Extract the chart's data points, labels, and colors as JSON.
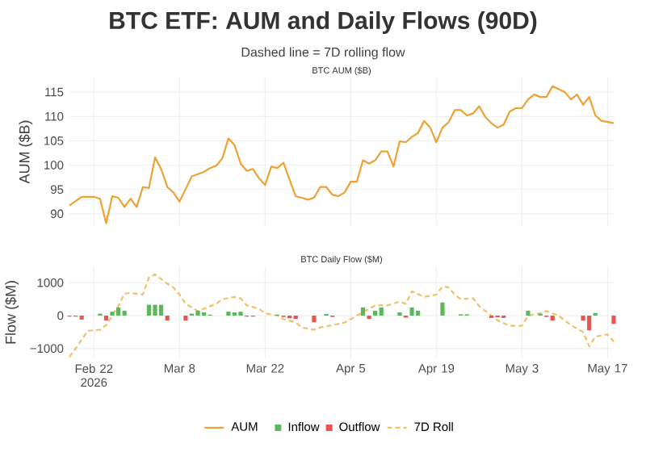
{
  "chart_data": [
    {
      "type": "line",
      "title": "BTC ETF: AUM and Daily Flows (90D)",
      "subtitle": "Dashed line = 7D rolling flow",
      "annotations": [
        "BTC AUM ($B)"
      ],
      "ylabel": "AUM ($B)",
      "xlim": [
        "2026-02-18",
        "2026-05-18"
      ],
      "ylim": [
        87.5,
        118
      ],
      "xticks": [
        "2026-02-22",
        "2026-03-08",
        "2026-03-22",
        "2026-04-05",
        "2026-04-19",
        "2026-05-03",
        "2026-05-17"
      ],
      "yticks": [
        90,
        95,
        100,
        105,
        110,
        115
      ],
      "tick_labels": "y",
      "grid": true,
      "legend": "bottom",
      "series": [
        {
          "name": "AUM",
          "color": "#eea236",
          "x": [
            "2026-02-18",
            "2026-02-20",
            "2026-02-22",
            "2026-02-23",
            "2026-02-24",
            "2026-02-25",
            "2026-02-26",
            "2026-02-27",
            "2026-02-28",
            "2026-03-01",
            "2026-03-02",
            "2026-03-03",
            "2026-03-04",
            "2026-03-05",
            "2026-03-06",
            "2026-03-07",
            "2026-03-08",
            "2026-03-09",
            "2026-03-10",
            "2026-03-12",
            "2026-03-13",
            "2026-03-14",
            "2026-03-15",
            "2026-03-16",
            "2026-03-17",
            "2026-03-18",
            "2026-03-19",
            "2026-03-20",
            "2026-03-21",
            "2026-03-22",
            "2026-03-23",
            "2026-03-24",
            "2026-03-25",
            "2026-03-26",
            "2026-03-27",
            "2026-03-28",
            "2026-03-29",
            "2026-03-30",
            "2026-03-31",
            "2026-04-01",
            "2026-04-02",
            "2026-04-03",
            "2026-04-04",
            "2026-04-05",
            "2026-04-06",
            "2026-04-07",
            "2026-04-08",
            "2026-04-09",
            "2026-04-10",
            "2026-04-11",
            "2026-04-12",
            "2026-04-13",
            "2026-04-14",
            "2026-04-15",
            "2026-04-16",
            "2026-04-17",
            "2026-04-18",
            "2026-04-19",
            "2026-04-20",
            "2026-04-21",
            "2026-04-22",
            "2026-04-23",
            "2026-04-24",
            "2026-04-25",
            "2026-04-26",
            "2026-04-27",
            "2026-04-28",
            "2026-04-29",
            "2026-04-30",
            "2026-05-01",
            "2026-05-02",
            "2026-05-03",
            "2026-05-04",
            "2026-05-05",
            "2026-05-06",
            "2026-05-07",
            "2026-05-08",
            "2026-05-10",
            "2026-05-11",
            "2026-05-12",
            "2026-05-13",
            "2026-05-14",
            "2026-05-15",
            "2026-05-16",
            "2026-05-18"
          ],
          "values": [
            91.7,
            93.5,
            93.5,
            93.1,
            88.1,
            93.6,
            93.3,
            91.4,
            93.1,
            91.4,
            95.5,
            95.3,
            101.6,
            99.2,
            95.5,
            94.4,
            92.5,
            95.1,
            97.7,
            98.6,
            99.4,
            99.9,
            101.4,
            105.5,
            104.1,
            100.3,
            98.8,
            99.2,
            97.3,
            95.9,
            99.7,
            99.4,
            100.5,
            97.0,
            93.6,
            93.3,
            92.9,
            93.3,
            95.5,
            95.5,
            93.9,
            93.6,
            94.4,
            96.6,
            96.6,
            101.0,
            100.3,
            101.0,
            102.8,
            102.8,
            99.7,
            104.9,
            104.7,
            105.8,
            106.6,
            109.1,
            107.7,
            104.7,
            107.7,
            108.8,
            111.3,
            111.3,
            110.2,
            110.6,
            112.1,
            109.9,
            108.6,
            107.7,
            108.3,
            111.0,
            111.7,
            111.7,
            113.5,
            114.5,
            114.0,
            114.0,
            116.2,
            115.0,
            113.5,
            114.5,
            112.4,
            114.0,
            110.2,
            109.1,
            108.6
          ]
        }
      ]
    },
    {
      "type": "bar",
      "title": "BTC Daily Flow ($M)",
      "ylabel": "Flow ($M)",
      "xlim": [
        "2026-02-18",
        "2026-05-18"
      ],
      "ylim": [
        -1300,
        1500
      ],
      "xticks": [
        {
          "value": "2026-02-22",
          "label": "Feb 22 2026"
        },
        {
          "value": "2026-03-08",
          "label": "Mar 8"
        },
        {
          "value": "2026-03-22",
          "label": "Mar 22"
        },
        {
          "value": "2026-04-05",
          "label": "Apr 5"
        },
        {
          "value": "2026-04-19",
          "label": "Apr 19"
        },
        {
          "value": "2026-05-03",
          "label": "May 3"
        },
        {
          "value": "2026-05-17",
          "label": "May 17"
        }
      ],
      "yticks": [
        {
          "value": -1000,
          "label": "−1000"
        },
        0,
        1000
      ],
      "grid": true,
      "legend": "bottom",
      "series": [
        {
          "name": "Inflow",
          "color": "#5cb85c",
          "x": [
            "2026-02-23",
            "2026-02-25",
            "2026-02-26",
            "2026-02-27",
            "2026-03-03",
            "2026-03-04",
            "2026-03-05",
            "2026-03-10",
            "2026-03-11",
            "2026-03-12",
            "2026-03-13",
            "2026-03-16",
            "2026-03-17",
            "2026-03-18",
            "2026-03-24",
            "2026-04-01",
            "2026-04-07",
            "2026-04-09",
            "2026-04-10",
            "2026-04-13",
            "2026-04-15",
            "2026-04-16",
            "2026-04-20",
            "2026-04-23",
            "2026-04-24",
            "2026-05-04",
            "2026-05-06",
            "2026-05-15"
          ],
          "values": [
            60,
            120,
            250,
            150,
            330,
            330,
            330,
            60,
            150,
            100,
            30,
            120,
            100,
            120,
            30,
            50,
            250,
            150,
            250,
            100,
            250,
            150,
            400,
            40,
            40,
            150,
            60,
            80
          ]
        },
        {
          "name": "Outflow",
          "color": "#e8554e",
          "x": [
            "2026-02-18",
            "2026-02-19",
            "2026-02-20",
            "2026-02-24",
            "2026-03-06",
            "2026-03-09",
            "2026-03-19",
            "2026-03-20",
            "2026-03-25",
            "2026-03-26",
            "2026-03-27",
            "2026-03-30",
            "2026-04-02",
            "2026-04-08",
            "2026-04-14",
            "2026-04-28",
            "2026-04-29",
            "2026-04-30",
            "2026-05-07",
            "2026-05-08",
            "2026-05-13",
            "2026-05-14",
            "2026-05-18"
          ],
          "values": [
            -30,
            -30,
            -120,
            -150,
            -150,
            -150,
            -30,
            -30,
            -40,
            -80,
            -100,
            -200,
            -40,
            -100,
            -60,
            -70,
            -50,
            -70,
            -40,
            -150,
            -150,
            -450,
            -250
          ]
        },
        {
          "name": "7D Roll",
          "type": "line",
          "line_style": "dashed",
          "color": "#f2c06a",
          "x": [
            "2026-02-18",
            "2026-02-19",
            "2026-02-21",
            "2026-02-23",
            "2026-02-24",
            "2026-02-26",
            "2026-02-27",
            "2026-02-28",
            "2026-03-02",
            "2026-03-03",
            "2026-03-04",
            "2026-03-06",
            "2026-03-07",
            "2026-03-08",
            "2026-03-09",
            "2026-03-11",
            "2026-03-12",
            "2026-03-14",
            "2026-03-15",
            "2026-03-17",
            "2026-03-18",
            "2026-03-19",
            "2026-03-21",
            "2026-03-22",
            "2026-03-24",
            "2026-03-25",
            "2026-03-27",
            "2026-03-28",
            "2026-03-30",
            "2026-03-31",
            "2026-04-02",
            "2026-04-04",
            "2026-04-06",
            "2026-04-08",
            "2026-04-09",
            "2026-04-11",
            "2026-04-13",
            "2026-04-14",
            "2026-04-15",
            "2026-04-17",
            "2026-04-19",
            "2026-04-20",
            "2026-04-21",
            "2026-04-22",
            "2026-04-23",
            "2026-04-25",
            "2026-04-26",
            "2026-04-28",
            "2026-04-29",
            "2026-05-01",
            "2026-05-03",
            "2026-05-04",
            "2026-05-06",
            "2026-05-07",
            "2026-05-09",
            "2026-05-11",
            "2026-05-13",
            "2026-05-14",
            "2026-05-15",
            "2026-05-17",
            "2026-05-18"
          ],
          "values": [
            -1260,
            -1000,
            -460,
            -430,
            -290,
            290,
            670,
            690,
            640,
            1170,
            1260,
            970,
            860,
            640,
            360,
            140,
            210,
            360,
            500,
            570,
            530,
            310,
            210,
            70,
            0,
            -110,
            -210,
            -360,
            -430,
            -360,
            -290,
            -210,
            0,
            210,
            310,
            310,
            430,
            360,
            740,
            570,
            640,
            890,
            860,
            640,
            500,
            530,
            290,
            0,
            -140,
            -310,
            -310,
            0,
            70,
            140,
            0,
            -290,
            -500,
            -930,
            -640,
            -570,
            -790
          ]
        }
      ]
    }
  ]
}
